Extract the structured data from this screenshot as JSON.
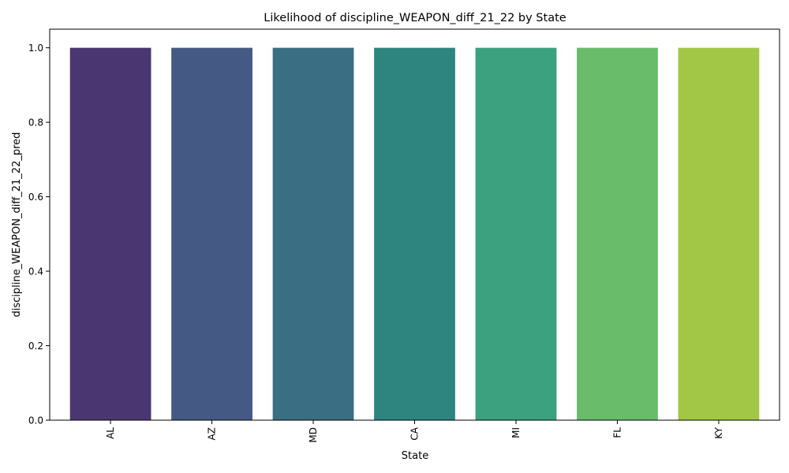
{
  "chart_data": {
    "type": "bar",
    "title": "Likelihood of discipline_WEAPON_diff_21_22 by State",
    "xlabel": "State",
    "ylabel": "discipline_WEAPON_diff_21_22_pred",
    "categories": [
      "AL",
      "AZ",
      "MD",
      "CA",
      "MI",
      "FL",
      "KY"
    ],
    "values": [
      1.0,
      1.0,
      1.0,
      1.0,
      1.0,
      1.0,
      1.0
    ],
    "colors": [
      "#4a3671",
      "#445a84",
      "#3a6e83",
      "#2e857f",
      "#3ca17e",
      "#69bc6a",
      "#a2c747"
    ],
    "ylim": [
      0,
      1.05
    ],
    "yticks": [
      0.0,
      0.2,
      0.4,
      0.6,
      0.8,
      1.0
    ],
    "ytick_labels": [
      "0.0",
      "0.2",
      "0.4",
      "0.6",
      "0.8",
      "1.0"
    ],
    "grid": false,
    "legend": "none",
    "xtick_rotation": "vertical"
  }
}
